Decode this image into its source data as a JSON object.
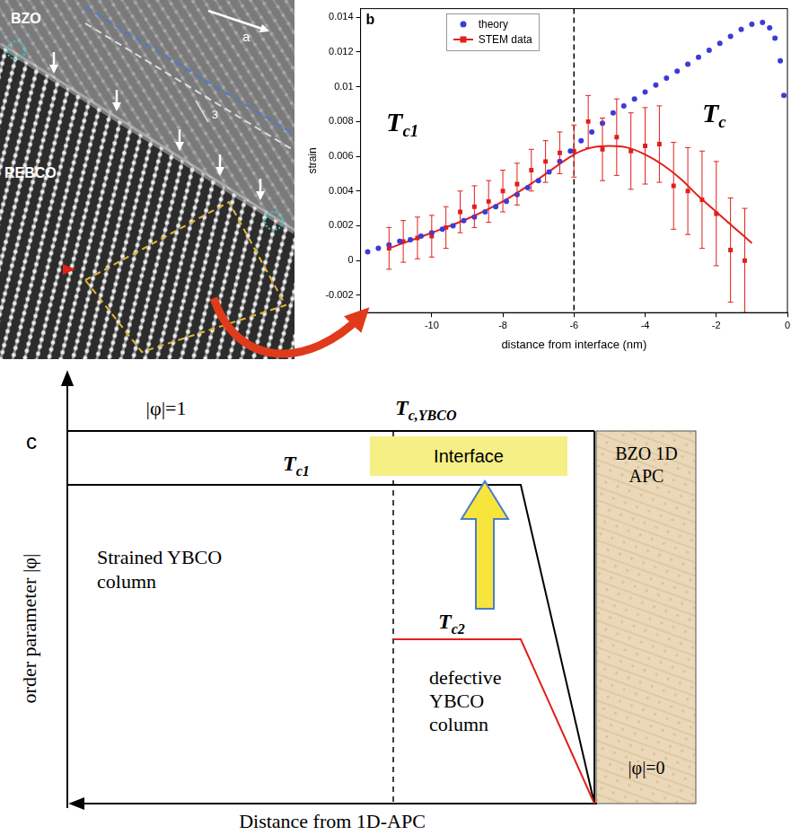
{
  "panel_a": {
    "letter": "a",
    "labels": [
      "BZO",
      "REBCO"
    ],
    "angle_label": "3"
  },
  "chart_data": {
    "letter": "b",
    "type": "scatter",
    "x_label": "distance from interface (nm)",
    "y_label": "strain",
    "xlim": [
      -12,
      0
    ],
    "xticks": [
      -10,
      -8,
      -6,
      -4,
      -2,
      0
    ],
    "ylim": [
      -0.003,
      0.0145
    ],
    "yticks": [
      -0.002,
      0,
      0.002,
      0.004,
      0.006,
      0.008,
      0.01,
      0.012,
      0.014
    ],
    "grid": false,
    "legend": "upper left",
    "series": [
      {
        "name": "theory",
        "color": "#3b3bd9",
        "marker": "circle",
        "x": [
          -11.8,
          -11.5,
          -11.2,
          -10.9,
          -10.6,
          -10.3,
          -10.0,
          -9.7,
          -9.4,
          -9.1,
          -8.8,
          -8.5,
          -8.2,
          -7.9,
          -7.6,
          -7.3,
          -7.0,
          -6.7,
          -6.4,
          -6.1,
          -5.8,
          -5.5,
          -5.2,
          -4.9,
          -4.6,
          -4.3,
          -4.0,
          -3.7,
          -3.4,
          -3.1,
          -2.8,
          -2.5,
          -2.2,
          -1.9,
          -1.6,
          -1.3,
          -1.0,
          -0.7,
          -0.5,
          -0.35,
          -0.2,
          -0.1
        ],
        "values": [
          0.0005,
          0.0007,
          0.0009,
          0.0011,
          0.0012,
          0.0014,
          0.0016,
          0.0018,
          0.002,
          0.0023,
          0.0025,
          0.0028,
          0.0031,
          0.0034,
          0.0038,
          0.0042,
          0.0046,
          0.0051,
          0.0057,
          0.0063,
          0.0069,
          0.0074,
          0.0079,
          0.0085,
          0.0089,
          0.0093,
          0.0097,
          0.0101,
          0.0105,
          0.0109,
          0.0113,
          0.0117,
          0.0121,
          0.0125,
          0.0129,
          0.0133,
          0.0136,
          0.0137,
          0.0134,
          0.0128,
          0.0115,
          0.0095
        ]
      },
      {
        "name": "STEM data",
        "color": "#e0201b",
        "marker": "square",
        "line_style": "solid",
        "x": [
          -11.2,
          -10.8,
          -10.4,
          -10.0,
          -9.6,
          -9.2,
          -8.8,
          -8.4,
          -8.0,
          -7.6,
          -7.2,
          -6.8,
          -6.4,
          -6.0,
          -5.6,
          -5.2,
          -4.8,
          -4.4,
          -4.0,
          -3.6,
          -3.2,
          -2.8,
          -2.4,
          -2.0,
          -1.6,
          -1.2
        ],
        "values": [
          0.0007,
          0.0011,
          0.0013,
          0.0014,
          0.0019,
          0.0028,
          0.0031,
          0.0034,
          0.004,
          0.0044,
          0.0052,
          0.0057,
          0.0062,
          0.0063,
          0.008,
          0.0064,
          0.0071,
          0.0063,
          0.0066,
          0.0067,
          0.0043,
          0.004,
          0.0035,
          0.0027,
          0.0006,
          0
        ],
        "errors": [
          0.0012,
          0.0012,
          0.0012,
          0.0012,
          0.0012,
          0.0012,
          0.0012,
          0.0012,
          0.0012,
          0.0012,
          0.0012,
          0.0012,
          0.0012,
          0.0015,
          0.0015,
          0.0018,
          0.0022,
          0.0022,
          0.0022,
          0.0022,
          0.0025,
          0.0025,
          0.0028,
          0.003,
          0.003,
          0.003
        ],
        "fit": {
          "x": [
            -11.2,
            -10,
            -9,
            -8,
            -7,
            -6,
            -5.5,
            -5,
            -4.5,
            -4,
            -3.5,
            -3,
            -2.5,
            -2,
            -1.5,
            -1
          ],
          "values": [
            0.0007,
            0.0016,
            0.0024,
            0.0034,
            0.0047,
            0.0061,
            0.0065,
            0.0066,
            0.0065,
            0.0061,
            0.0055,
            0.0047,
            0.0037,
            0.0028,
            0.0019,
            0.001
          ]
        }
      }
    ],
    "annotations": [
      {
        "type": "vline",
        "x": -6,
        "line_style": "dashed"
      },
      {
        "type": "text",
        "text": "T",
        "sub": "c1"
      },
      {
        "type": "text",
        "text": "T",
        "sub": "c"
      }
    ]
  },
  "panel_c": {
    "letter": "c",
    "y_label": "order parameter |φ|",
    "x_label": "Distance from 1D-APC",
    "phi_one": "|φ|=1",
    "tc_ybco": {
      "text": "T",
      "sub": "c,YBCO"
    },
    "tc1": {
      "text": "T",
      "sub": "c1"
    },
    "interface": "Interface",
    "strained": "Strained YBCO column",
    "tc2": {
      "text": "T",
      "sub": "c2"
    },
    "defective": "defective YBCO column",
    "bzo": "BZO 1D APC",
    "phi_zero": "|φ|=0"
  }
}
